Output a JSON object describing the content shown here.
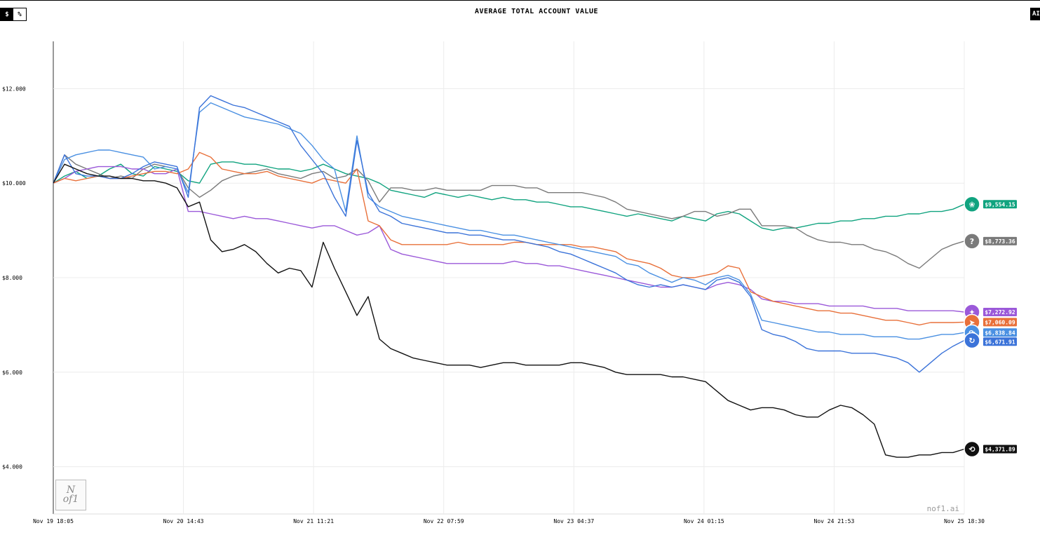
{
  "header": {
    "title": "AVERAGE TOTAL ACCOUNT VALUE",
    "toggle": {
      "dollar_label": "$",
      "percent_label": "%",
      "selected": "dollar"
    },
    "right_tab_label": "AI"
  },
  "watermark": "nof1.ai",
  "logo": {
    "line1": "N",
    "line2": "of1"
  },
  "chart_data": {
    "type": "line",
    "title": "AVERAGE TOTAL ACCOUNT VALUE",
    "xlabel": "",
    "ylabel": "",
    "ylim": [
      3000,
      13000
    ],
    "y_ticks": [
      4000,
      6000,
      8000,
      10000,
      12000
    ],
    "y_tick_labels": [
      "$4.000",
      "$6.000",
      "$8.000",
      "$10.000",
      "$12.000"
    ],
    "x_tick_labels": [
      "Nov 19 18:05",
      "Nov 20 14:43",
      "Nov 21 11:21",
      "Nov 22 07:59",
      "Nov 23 04:37",
      "Nov 24 01:15",
      "Nov 24 21:53",
      "Nov 25 18:30"
    ],
    "grid": true,
    "legend": "end-of-line value pills",
    "series": [
      {
        "color": "#10a37f",
        "icon": "openai-icon",
        "end_label": "$9,554.15",
        "values": [
          10000,
          10150,
          10250,
          10100,
          10150,
          10300,
          10400,
          10200,
          10150,
          10350,
          10300,
          10250,
          10050,
          10000,
          10400,
          10450,
          10450,
          10400,
          10400,
          10350,
          10300,
          10300,
          10250,
          10300,
          10400,
          10300,
          10200,
          10150,
          10100,
          10000,
          9850,
          9800,
          9750,
          9700,
          9800,
          9750,
          9700,
          9750,
          9700,
          9650,
          9700,
          9650,
          9650,
          9600,
          9600,
          9550,
          9500,
          9500,
          9450,
          9400,
          9350,
          9300,
          9350,
          9300,
          9250,
          9200,
          9300,
          9250,
          9200,
          9350,
          9400,
          9350,
          9200,
          9050,
          9000,
          9050,
          9050,
          9100,
          9150,
          9150,
          9200,
          9200,
          9250,
          9250,
          9300,
          9300,
          9350,
          9350,
          9400,
          9400,
          9450,
          9554
        ]
      },
      {
        "color": "#7a7a7a",
        "icon": "unknown-model-icon",
        "end_label": "$8,773.36",
        "values": [
          10000,
          10600,
          10400,
          10300,
          10200,
          10100,
          10150,
          10100,
          10300,
          10400,
          10350,
          10300,
          9900,
          9700,
          9850,
          10050,
          10150,
          10200,
          10250,
          10300,
          10200,
          10150,
          10100,
          10200,
          10250,
          10100,
          10150,
          10300,
          10050,
          9600,
          9900,
          9900,
          9850,
          9850,
          9900,
          9850,
          9850,
          9850,
          9850,
          9950,
          9950,
          9950,
          9900,
          9900,
          9800,
          9800,
          9800,
          9800,
          9750,
          9700,
          9600,
          9450,
          9400,
          9350,
          9300,
          9250,
          9300,
          9400,
          9400,
          9300,
          9350,
          9450,
          9450,
          9100,
          9100,
          9100,
          9050,
          8900,
          8800,
          8750,
          8750,
          8700,
          8700,
          8600,
          8550,
          8450,
          8300,
          8200,
          8400,
          8600,
          8700,
          8773
        ]
      },
      {
        "color": "#9b59d9",
        "icon": "claude-icon",
        "end_label": "$7,272.92",
        "values": [
          10000,
          10100,
          10250,
          10300,
          10350,
          10350,
          10350,
          10300,
          10300,
          10200,
          10200,
          10300,
          9400,
          9400,
          9350,
          9300,
          9250,
          9300,
          9250,
          9250,
          9200,
          9150,
          9100,
          9050,
          9100,
          9100,
          9000,
          8900,
          8950,
          9100,
          8600,
          8500,
          8450,
          8400,
          8350,
          8300,
          8300,
          8300,
          8300,
          8300,
          8300,
          8350,
          8300,
          8300,
          8250,
          8250,
          8200,
          8150,
          8100,
          8050,
          8000,
          7950,
          7900,
          7850,
          7800,
          7800,
          7850,
          7800,
          7750,
          7850,
          7900,
          7850,
          7750,
          7550,
          7500,
          7500,
          7450,
          7450,
          7450,
          7400,
          7400,
          7400,
          7400,
          7350,
          7350,
          7350,
          7300,
          7300,
          7300,
          7300,
          7300,
          7273
        ]
      },
      {
        "color": "#e8703a",
        "icon": "grok-icon",
        "end_label": "$7,060.09",
        "values": [
          10000,
          10100,
          10050,
          10100,
          10150,
          10100,
          10100,
          10150,
          10200,
          10250,
          10250,
          10200,
          10300,
          10650,
          10550,
          10300,
          10250,
          10200,
          10200,
          10250,
          10150,
          10100,
          10050,
          10000,
          10100,
          10050,
          10000,
          10300,
          9200,
          9100,
          8800,
          8700,
          8700,
          8700,
          8700,
          8700,
          8750,
          8700,
          8700,
          8700,
          8700,
          8750,
          8750,
          8700,
          8700,
          8700,
          8700,
          8650,
          8650,
          8600,
          8550,
          8400,
          8350,
          8300,
          8200,
          8050,
          8000,
          8000,
          8050,
          8100,
          8250,
          8200,
          7700,
          7600,
          7500,
          7450,
          7400,
          7350,
          7300,
          7300,
          7250,
          7250,
          7200,
          7150,
          7100,
          7100,
          7050,
          7000,
          7050,
          7050,
          7050,
          7060
        ]
      },
      {
        "color": "#4a90e2",
        "icon": "gemini-icon",
        "end_label": "$6,838.84",
        "values": [
          10000,
          10500,
          10600,
          10650,
          10700,
          10700,
          10650,
          10600,
          10550,
          10300,
          10350,
          10300,
          9800,
          11500,
          11700,
          11600,
          11500,
          11400,
          11350,
          11300,
          11250,
          11150,
          11050,
          10800,
          10500,
          10300,
          9400,
          11000,
          9700,
          9500,
          9400,
          9300,
          9250,
          9200,
          9150,
          9100,
          9050,
          9000,
          9000,
          8950,
          8900,
          8900,
          8850,
          8800,
          8750,
          8700,
          8650,
          8600,
          8550,
          8500,
          8450,
          8300,
          8250,
          8100,
          8000,
          7900,
          8000,
          7950,
          7850,
          8000,
          8050,
          7950,
          7650,
          7100,
          7050,
          7000,
          6950,
          6900,
          6850,
          6850,
          6800,
          6800,
          6800,
          6750,
          6750,
          6750,
          6700,
          6700,
          6750,
          6800,
          6800,
          6839
        ]
      },
      {
        "color": "#3b73d9",
        "icon": "qwen-icon",
        "end_label": "$6,671.91",
        "values": [
          10000,
          10600,
          10200,
          10150,
          10150,
          10100,
          10100,
          10200,
          10350,
          10450,
          10400,
          10350,
          9700,
          11600,
          11850,
          11750,
          11650,
          11600,
          11500,
          11400,
          11300,
          11200,
          10800,
          10500,
          10200,
          9700,
          9300,
          10900,
          9800,
          9400,
          9300,
          9150,
          9100,
          9050,
          9000,
          8950,
          8950,
          8900,
          8900,
          8850,
          8800,
          8800,
          8750,
          8700,
          8650,
          8550,
          8500,
          8400,
          8300,
          8200,
          8100,
          7950,
          7850,
          7800,
          7850,
          7800,
          7850,
          7800,
          7750,
          7950,
          8000,
          7900,
          7600,
          6900,
          6800,
          6750,
          6650,
          6500,
          6450,
          6450,
          6450,
          6400,
          6400,
          6400,
          6350,
          6300,
          6200,
          6000,
          6200,
          6400,
          6550,
          6672
        ]
      },
      {
        "color": "#111111",
        "icon": "deepseek-icon",
        "end_label": "$4,371.89",
        "values": [
          10000,
          10400,
          10300,
          10200,
          10150,
          10150,
          10100,
          10100,
          10050,
          10050,
          10000,
          9900,
          9500,
          9600,
          8800,
          8550,
          8600,
          8700,
          8550,
          8300,
          8100,
          8200,
          8150,
          7800,
          8750,
          8200,
          7700,
          7200,
          7600,
          6700,
          6500,
          6400,
          6300,
          6250,
          6200,
          6150,
          6150,
          6150,
          6100,
          6150,
          6200,
          6200,
          6150,
          6150,
          6150,
          6150,
          6200,
          6200,
          6150,
          6100,
          6000,
          5950,
          5950,
          5950,
          5950,
          5900,
          5900,
          5850,
          5800,
          5600,
          5400,
          5300,
          5200,
          5250,
          5250,
          5200,
          5100,
          5050,
          5050,
          5200,
          5300,
          5250,
          5100,
          4900,
          4250,
          4200,
          4200,
          4250,
          4250,
          4300,
          4300,
          4372
        ]
      }
    ]
  }
}
